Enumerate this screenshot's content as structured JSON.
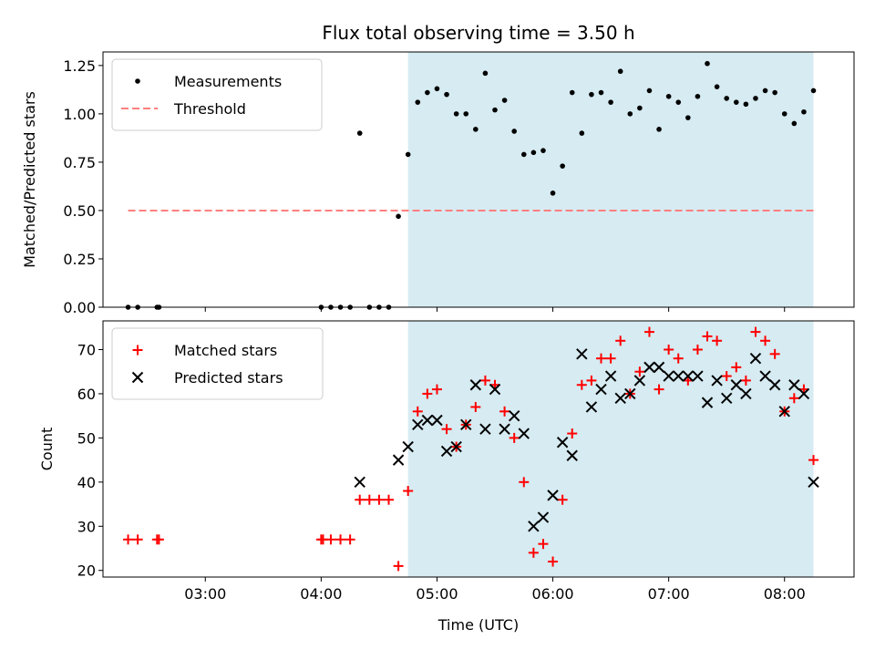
{
  "chart_data": [
    {
      "type": "scatter",
      "title": "Flux total observing time = 3.50 h",
      "xlabel": "",
      "ylabel": "Matched/Predicted stars",
      "xlim": [
        "02:07",
        "08:36"
      ],
      "ylim": [
        0,
        1.32
      ],
      "yticks": [
        0.0,
        0.25,
        0.5,
        0.75,
        1.0,
        1.25
      ],
      "ytick_labels": [
        "0.00",
        "0.25",
        "0.50",
        "0.75",
        "1.00",
        "1.25"
      ],
      "legend": "top-left",
      "shaded_region": {
        "start": "04:45",
        "end": "08:15",
        "color": "#add8e6"
      },
      "series": [
        {
          "name": "Measurements",
          "marker": "dot",
          "color": "#000000",
          "points": [
            [
              "02:20",
              0.0
            ],
            [
              "02:25",
              0.0
            ],
            [
              "02:35",
              0.0
            ],
            [
              "02:36",
              0.0
            ],
            [
              "04:00",
              0.0
            ],
            [
              "04:05",
              0.0
            ],
            [
              "04:10",
              0.0
            ],
            [
              "04:15",
              0.0
            ],
            [
              "04:20",
              0.9
            ],
            [
              "04:25",
              0.0
            ],
            [
              "04:30",
              0.0
            ],
            [
              "04:35",
              0.0
            ],
            [
              "04:40",
              0.47
            ],
            [
              "04:45",
              0.79
            ],
            [
              "04:50",
              1.06
            ],
            [
              "04:55",
              1.11
            ],
            [
              "05:00",
              1.13
            ],
            [
              "05:05",
              1.1
            ],
            [
              "05:10",
              1.0
            ],
            [
              "05:15",
              1.0
            ],
            [
              "05:20",
              0.92
            ],
            [
              "05:25",
              1.21
            ],
            [
              "05:30",
              1.02
            ],
            [
              "05:35",
              1.07
            ],
            [
              "05:40",
              0.91
            ],
            [
              "05:45",
              0.79
            ],
            [
              "05:50",
              0.8
            ],
            [
              "05:55",
              0.81
            ],
            [
              "06:00",
              0.59
            ],
            [
              "06:05",
              0.73
            ],
            [
              "06:10",
              1.11
            ],
            [
              "06:15",
              0.9
            ],
            [
              "06:20",
              1.1
            ],
            [
              "06:25",
              1.11
            ],
            [
              "06:30",
              1.06
            ],
            [
              "06:35",
              1.22
            ],
            [
              "06:40",
              1.0
            ],
            [
              "06:45",
              1.03
            ],
            [
              "06:50",
              1.12
            ],
            [
              "06:55",
              0.92
            ],
            [
              "07:00",
              1.09
            ],
            [
              "07:05",
              1.06
            ],
            [
              "07:10",
              0.98
            ],
            [
              "07:15",
              1.09
            ],
            [
              "07:20",
              1.26
            ],
            [
              "07:25",
              1.14
            ],
            [
              "07:30",
              1.08
            ],
            [
              "07:35",
              1.06
            ],
            [
              "07:40",
              1.05
            ],
            [
              "07:45",
              1.08
            ],
            [
              "07:50",
              1.12
            ],
            [
              "07:55",
              1.11
            ],
            [
              "08:00",
              1.0
            ],
            [
              "08:05",
              0.95
            ],
            [
              "08:10",
              1.01
            ],
            [
              "08:15",
              1.12
            ]
          ]
        },
        {
          "name": "Threshold",
          "marker": "dashed-line",
          "color": "#ff7f7f",
          "points": [
            [
              "02:20",
              0.5
            ],
            [
              "08:15",
              0.5
            ]
          ]
        }
      ]
    },
    {
      "type": "scatter",
      "title": "",
      "xlabel": "Time (UTC)",
      "ylabel": "Count",
      "xlim": [
        "02:07",
        "08:36"
      ],
      "ylim": [
        18.5,
        76.5
      ],
      "yticks": [
        20,
        30,
        40,
        50,
        60,
        70
      ],
      "ytick_labels": [
        "20",
        "30",
        "40",
        "50",
        "60",
        "70"
      ],
      "xticks": [
        "03:00",
        "04:00",
        "05:00",
        "06:00",
        "07:00",
        "08:00"
      ],
      "legend": "top-left",
      "shaded_region": {
        "start": "04:45",
        "end": "08:15",
        "color": "#add8e6"
      },
      "series": [
        {
          "name": "Matched stars",
          "marker": "plus",
          "color": "#ff0000",
          "points": [
            [
              "02:20",
              27
            ],
            [
              "02:25",
              27
            ],
            [
              "02:35",
              27
            ],
            [
              "02:36",
              27
            ],
            [
              "04:00",
              27
            ],
            [
              "04:01",
              27
            ],
            [
              "04:05",
              27
            ],
            [
              "04:10",
              27
            ],
            [
              "04:15",
              27
            ],
            [
              "04:20",
              36
            ],
            [
              "04:25",
              36
            ],
            [
              "04:30",
              36
            ],
            [
              "04:35",
              36
            ],
            [
              "04:40",
              21
            ],
            [
              "04:45",
              38
            ],
            [
              "04:50",
              56
            ],
            [
              "04:55",
              60
            ],
            [
              "05:00",
              61
            ],
            [
              "05:05",
              52
            ],
            [
              "05:10",
              48
            ],
            [
              "05:15",
              53
            ],
            [
              "05:20",
              57
            ],
            [
              "05:25",
              63
            ],
            [
              "05:30",
              62
            ],
            [
              "05:35",
              56
            ],
            [
              "05:40",
              50
            ],
            [
              "05:45",
              40
            ],
            [
              "05:50",
              24
            ],
            [
              "05:55",
              26
            ],
            [
              "06:00",
              22
            ],
            [
              "06:05",
              36
            ],
            [
              "06:10",
              51
            ],
            [
              "06:15",
              62
            ],
            [
              "06:20",
              63
            ],
            [
              "06:25",
              68
            ],
            [
              "06:30",
              68
            ],
            [
              "06:35",
              72
            ],
            [
              "06:40",
              60
            ],
            [
              "06:45",
              65
            ],
            [
              "06:50",
              74
            ],
            [
              "06:55",
              61
            ],
            [
              "07:00",
              70
            ],
            [
              "07:05",
              68
            ],
            [
              "07:10",
              63
            ],
            [
              "07:15",
              70
            ],
            [
              "07:20",
              73
            ],
            [
              "07:25",
              72
            ],
            [
              "07:30",
              64
            ],
            [
              "07:35",
              66
            ],
            [
              "07:40",
              63
            ],
            [
              "07:45",
              74
            ],
            [
              "07:50",
              72
            ],
            [
              "07:55",
              69
            ],
            [
              "08:00",
              56
            ],
            [
              "08:05",
              59
            ],
            [
              "08:10",
              61
            ],
            [
              "08:15",
              45
            ]
          ]
        },
        {
          "name": "Predicted stars",
          "marker": "x",
          "color": "#000000",
          "points": [
            [
              "04:20",
              40
            ],
            [
              "04:40",
              45
            ],
            [
              "04:45",
              48
            ],
            [
              "04:50",
              53
            ],
            [
              "04:55",
              54
            ],
            [
              "05:00",
              54
            ],
            [
              "05:05",
              47
            ],
            [
              "05:10",
              48
            ],
            [
              "05:15",
              53
            ],
            [
              "05:20",
              62
            ],
            [
              "05:25",
              52
            ],
            [
              "05:30",
              61
            ],
            [
              "05:35",
              52
            ],
            [
              "05:40",
              55
            ],
            [
              "05:45",
              51
            ],
            [
              "05:50",
              30
            ],
            [
              "05:55",
              32
            ],
            [
              "06:00",
              37
            ],
            [
              "06:05",
              49
            ],
            [
              "06:10",
              46
            ],
            [
              "06:15",
              69
            ],
            [
              "06:20",
              57
            ],
            [
              "06:25",
              61
            ],
            [
              "06:30",
              64
            ],
            [
              "06:35",
              59
            ],
            [
              "06:40",
              60
            ],
            [
              "06:45",
              63
            ],
            [
              "06:50",
              66
            ],
            [
              "06:55",
              66
            ],
            [
              "07:00",
              64
            ],
            [
              "07:05",
              64
            ],
            [
              "07:10",
              64
            ],
            [
              "07:15",
              64
            ],
            [
              "07:20",
              58
            ],
            [
              "07:25",
              63
            ],
            [
              "07:30",
              59
            ],
            [
              "07:35",
              62
            ],
            [
              "07:40",
              60
            ],
            [
              "07:45",
              68
            ],
            [
              "07:50",
              64
            ],
            [
              "07:55",
              62
            ],
            [
              "08:00",
              56
            ],
            [
              "08:05",
              62
            ],
            [
              "08:10",
              60
            ],
            [
              "08:15",
              40
            ]
          ]
        }
      ]
    }
  ]
}
